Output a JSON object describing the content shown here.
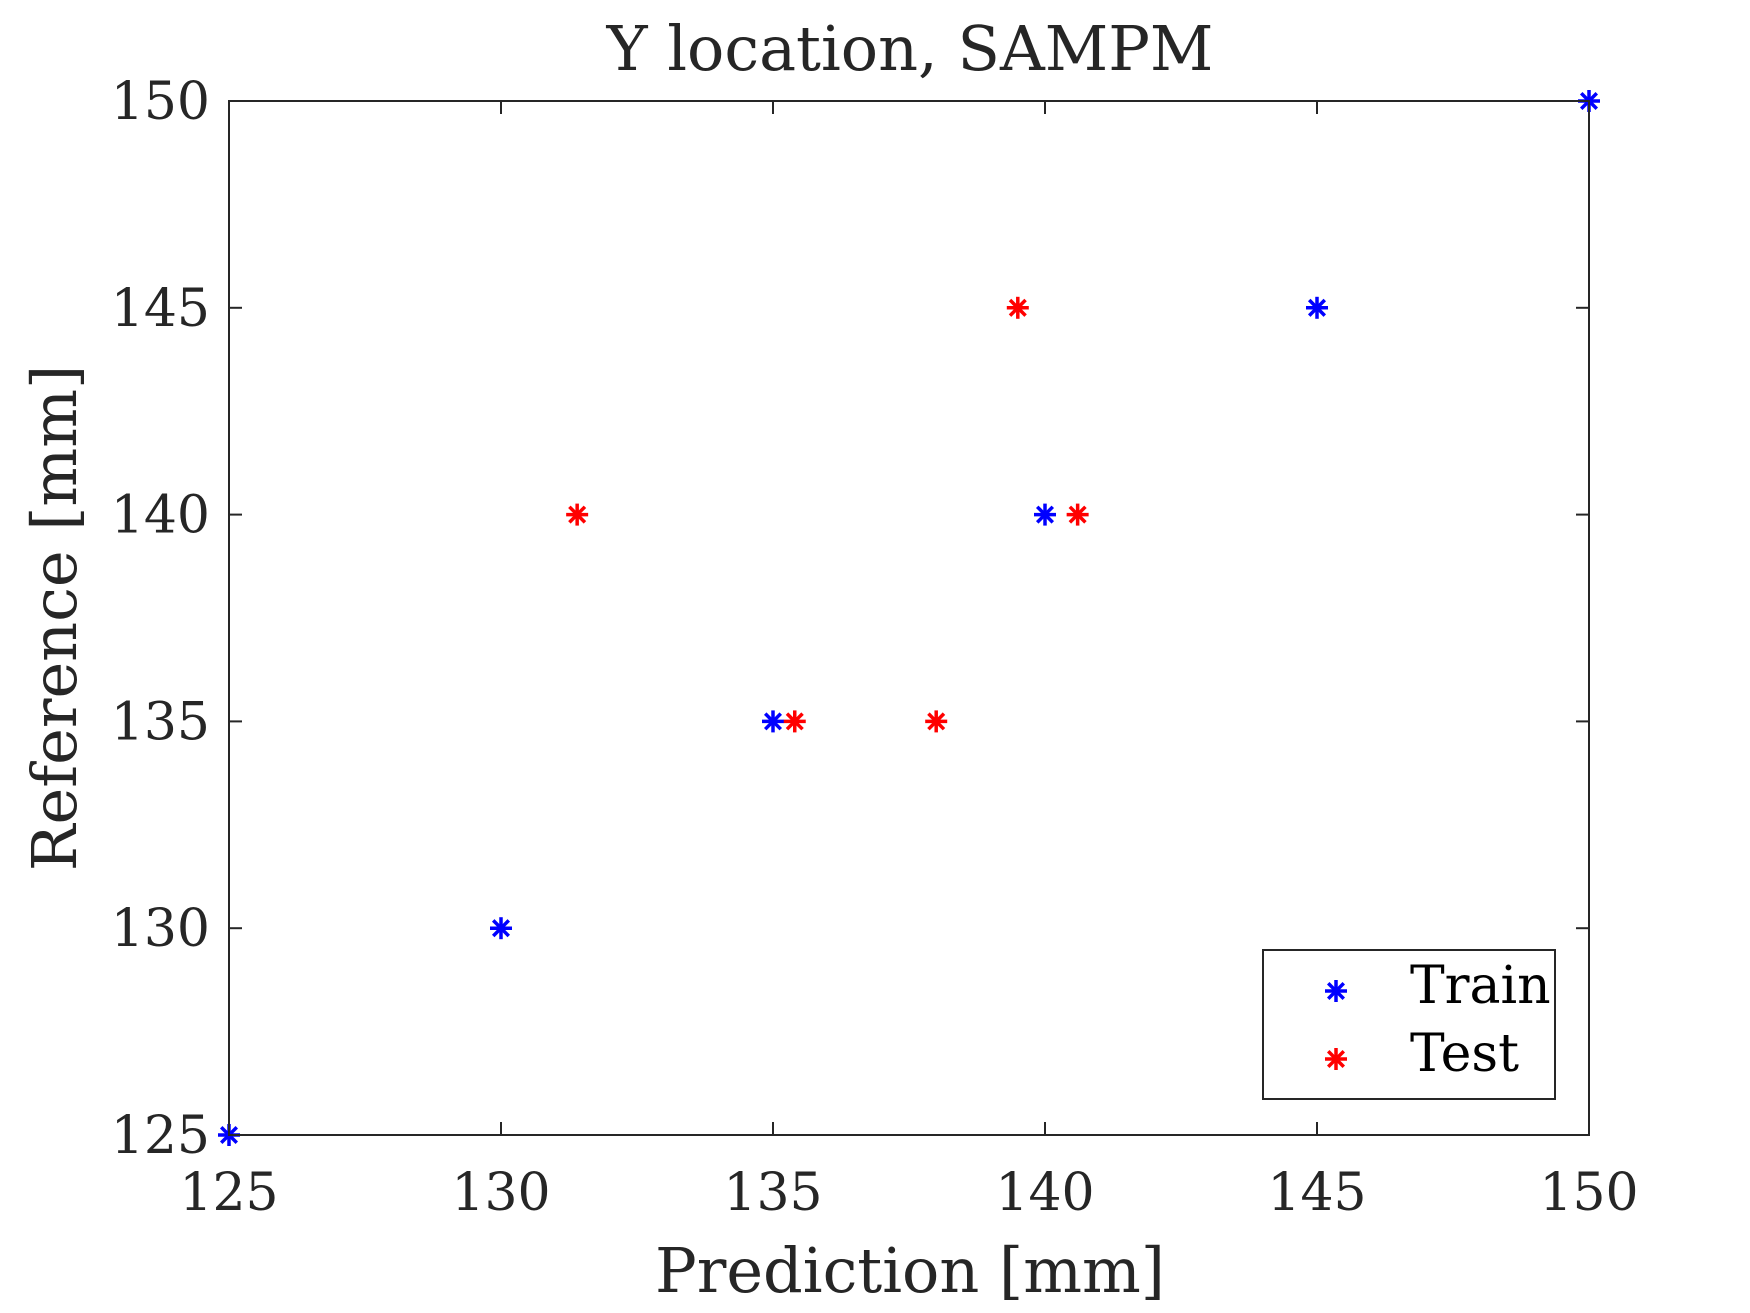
{
  "chart_data": {
    "type": "scatter",
    "title": "Y location, SAMPM",
    "xlabel": "Prediction [mm]",
    "ylabel": "Reference [mm]",
    "xlim": [
      125,
      150
    ],
    "ylim": [
      125,
      150
    ],
    "xticks": [
      "125",
      "130",
      "135",
      "140",
      "145",
      "150"
    ],
    "yticks": [
      "125",
      "130",
      "135",
      "140",
      "145",
      "150"
    ],
    "grid": false,
    "legend_position": "bottom-right",
    "series": [
      {
        "name": "Train",
        "color": "#0000ff",
        "marker": "asterisk",
        "points": [
          {
            "x": 125,
            "y": 125
          },
          {
            "x": 130,
            "y": 130
          },
          {
            "x": 135,
            "y": 135
          },
          {
            "x": 140,
            "y": 140
          },
          {
            "x": 145,
            "y": 145
          },
          {
            "x": 150,
            "y": 150
          }
        ]
      },
      {
        "name": "Test",
        "color": "#ff0000",
        "marker": "asterisk",
        "points": [
          {
            "x": 131.4,
            "y": 140
          },
          {
            "x": 135.4,
            "y": 135
          },
          {
            "x": 138.0,
            "y": 135
          },
          {
            "x": 139.5,
            "y": 145
          },
          {
            "x": 140.6,
            "y": 140
          }
        ]
      }
    ]
  }
}
